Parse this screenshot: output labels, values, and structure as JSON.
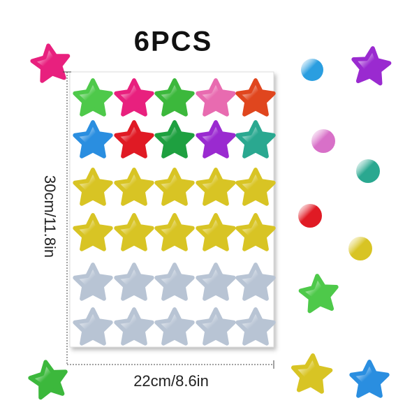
{
  "title": "6PCS",
  "height_label": "30cm/11.8in",
  "width_label": "22cm/8.6in"
}
